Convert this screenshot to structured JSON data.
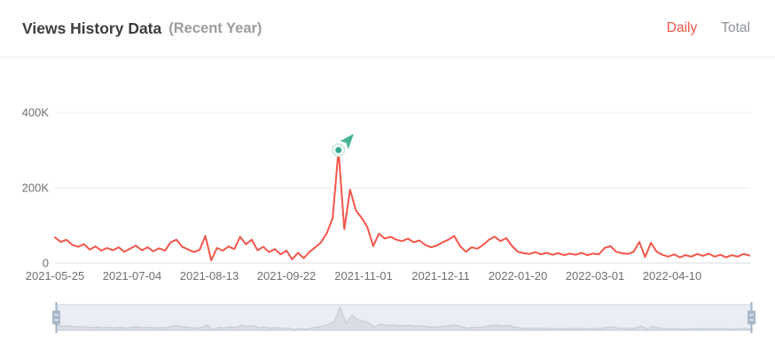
{
  "header": {
    "title": "Views History Data",
    "subtitle": "(Recent Year)",
    "tabs": [
      {
        "label": "Daily",
        "active": true
      },
      {
        "label": "Total",
        "active": false
      }
    ]
  },
  "colors": {
    "accent_red": "#f2564b",
    "title_text": "#3d3d3d",
    "subtitle_text": "#9c9c9c",
    "inactive_tab_text": "#8e9399",
    "axis_text": "#6f6f6f",
    "gridline": "#ededed",
    "zero_axis": "#dcdcdc",
    "marker_teal": "#2da88b",
    "marker_ring": "#ecf7f3",
    "marker_ring_stroke": "#bce3d8",
    "arrow_teal": "#48b497",
    "slider_bg": "#e9edf5",
    "slider_border": "#ccd4e1",
    "slider_silhouette_fill": "#d9dde6",
    "slider_silhouette_line": "#c4c9d4",
    "slider_handle_fill": "#aab7c9",
    "slider_handle_line": "#a3b2c6",
    "slider_handle_grip": "#e8eef5"
  },
  "chart_data": {
    "type": "line",
    "title": "Views History Data (Recent Year)",
    "grid": true,
    "legend": "none",
    "x_range_dates": [
      "2021-05-25",
      "2022-05-19"
    ],
    "x_tick_labels": [
      "2021-05-25",
      "2021-07-04",
      "2021-08-13",
      "2021-09-22",
      "2021-11-01",
      "2021-12-11",
      "2022-01-20",
      "2022-03-01",
      "2022-04-10"
    ],
    "x_tick_day_offsets": [
      0,
      40,
      80,
      120,
      160,
      200,
      240,
      280,
      320
    ],
    "y_tick_labels": [
      "0",
      "200K",
      "400K"
    ],
    "y_tick_values_k": [
      0,
      200,
      400
    ],
    "ylim_k": [
      0,
      470
    ],
    "y_tick_format": "K",
    "series": [
      {
        "name": "Daily Views",
        "color": "#f2564b",
        "start_date": "2021-05-25",
        "day_step": 3,
        "values_k": [
          68,
          56,
          62,
          48,
          43,
          50,
          36,
          44,
          33,
          40,
          34,
          42,
          30,
          38,
          46,
          34,
          42,
          31,
          39,
          33,
          55,
          62,
          43,
          36,
          29,
          35,
          72,
          7,
          40,
          33,
          44,
          37,
          70,
          50,
          62,
          34,
          43,
          29,
          37,
          23,
          33,
          10,
          27,
          13,
          30,
          42,
          55,
          80,
          120,
          300,
          90,
          195,
          140,
          120,
          95,
          45,
          78,
          65,
          70,
          62,
          58,
          65,
          55,
          60,
          48,
          42,
          46,
          55,
          62,
          72,
          45,
          30,
          42,
          38,
          48,
          62,
          70,
          58,
          66,
          45,
          30,
          26,
          24,
          29,
          23,
          27,
          22,
          26,
          21,
          25,
          22,
          27,
          21,
          25,
          23,
          40,
          45,
          30,
          26,
          24,
          30,
          56,
          16,
          54,
          30,
          22,
          17,
          23,
          15,
          21,
          17,
          24,
          19,
          25,
          17,
          22,
          15,
          21,
          17,
          24,
          20
        ]
      }
    ],
    "peak_marker": {
      "day_offset": 147,
      "value_k": 300,
      "icons": [
        "peak-marker-dot",
        "trend-arrow-icon"
      ]
    },
    "slider": {
      "window_start_pct": 0,
      "window_end_pct": 100
    }
  }
}
